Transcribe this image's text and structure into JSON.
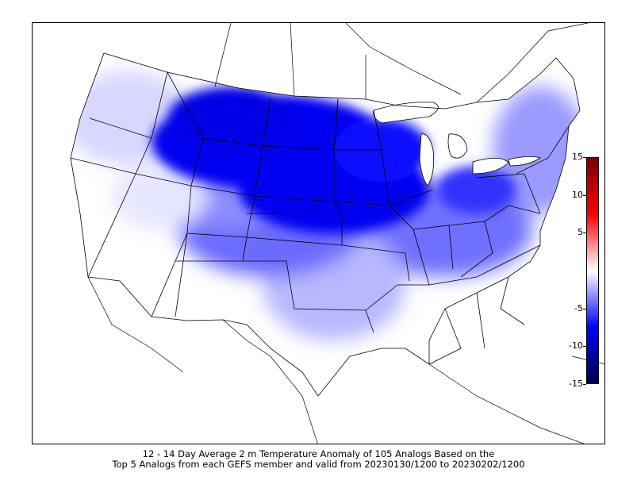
{
  "caption": {
    "line1": "12 - 14 Day Average 2 m Temperature Anomaly of 105 Analogs Based on the",
    "line2": "Top 5 Analogs from each GEFS member and valid from 20230130/1200 to 20230202/1200"
  },
  "colorbar": {
    "ticks": [
      "15",
      "10",
      "5",
      "-5",
      "-10",
      "-15"
    ],
    "tick_values": [
      15,
      10,
      5,
      -5,
      -10,
      -15
    ],
    "range": [
      -15,
      15
    ],
    "colormap": [
      "#00004a",
      "#0000ff",
      "#ffffff",
      "#ff0000",
      "#7a0000"
    ]
  },
  "map": {
    "projection": "lambert-conformal",
    "region": "CONUS",
    "variable": "2 m temperature anomaly",
    "pattern": "strong cold anomaly over northern Plains, Upper Midwest and Great Lakes; weaker cold over Northeast and Pacific Northwest; near-neutral over Southwest, Gulf Coast and Southeast",
    "colors": {
      "strong_cold": "#0000e6",
      "moderate_cold": "#4a4aff",
      "weak_cold": "#c8c8ff",
      "neutral": "#ffffff",
      "lakes": "#ffffff",
      "borders": "#000000"
    }
  }
}
